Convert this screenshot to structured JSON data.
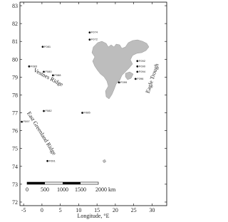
{
  "chart_data": {
    "type": "scatter",
    "x": [
      13,
      13,
      0.2,
      -3.5,
      0.5,
      3,
      26,
      26,
      26,
      25.5,
      21,
      0.5,
      -5.5,
      11,
      1.5
    ],
    "values": [
      81.5,
      81.1,
      80.7,
      79.6,
      79.3,
      79.1,
      79.9,
      79.6,
      79.3,
      78.9,
      78.7,
      77.1,
      76.5,
      77,
      74.3
    ],
    "point_labels": [
      "F074",
      "F072",
      "F081",
      "F083",
      "F080",
      "F088",
      "F092",
      "F090",
      "F094",
      "F096",
      "F099",
      "F082",
      "F097",
      "F085",
      "F091"
    ],
    "color": "#111",
    "xlim": [
      -6,
      34
    ],
    "ylim": [
      71.8,
      83.2
    ],
    "xticks": [
      -5,
      0,
      5,
      10,
      15,
      20,
      25,
      30
    ],
    "yticks": [
      72,
      73,
      74,
      75,
      76,
      77,
      78,
      79,
      80,
      81,
      82,
      83
    ],
    "x_label": "Longitude, °E",
    "annotations": [
      {
        "text": "Vestnes Ridge",
        "x": 1.5,
        "y": 78.9,
        "angle": 28
      },
      {
        "text": "Eagle Trough",
        "x": 30.5,
        "y": 78.9,
        "angle": -72
      },
      {
        "text": "East Greenland Ridge",
        "x": -0.5,
        "y": 75.8,
        "angle": 58
      }
    ],
    "scale_bar": {
      "labels": [
        "0",
        "500",
        "1000",
        "1500",
        "2000 km"
      ]
    }
  }
}
